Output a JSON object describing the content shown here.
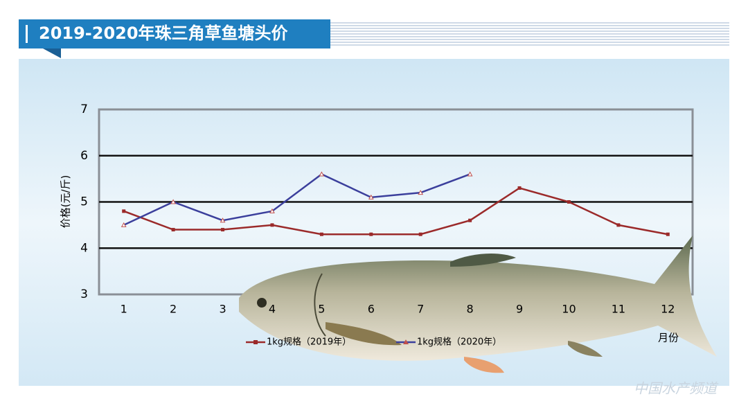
{
  "chart_data": {
    "type": "line",
    "title": "2019-2020年珠三角草鱼塘头价",
    "y_label": "价格(元/斤)",
    "x_label": "月份",
    "watermark": "中国水产频道",
    "categories": [
      "1",
      "2",
      "3",
      "4",
      "5",
      "6",
      "7",
      "8",
      "9",
      "10",
      "11",
      "12"
    ],
    "series": [
      {
        "name": "1kg规格（2019年）",
        "color": "#9b2a2a",
        "values": [
          4.8,
          4.4,
          4.4,
          4.5,
          4.3,
          4.3,
          4.3,
          4.6,
          5.3,
          5.0,
          4.5,
          4.3
        ]
      },
      {
        "name": "1kg规格（2020年）",
        "color": "#3b3f9c",
        "values": [
          4.5,
          5.0,
          4.6,
          4.8,
          5.6,
          5.1,
          5.2,
          5.6,
          null,
          null,
          null,
          null
        ]
      }
    ],
    "ylim": [
      3,
      7
    ],
    "yticks": [
      3,
      4,
      5,
      6,
      7
    ],
    "grid": true
  }
}
